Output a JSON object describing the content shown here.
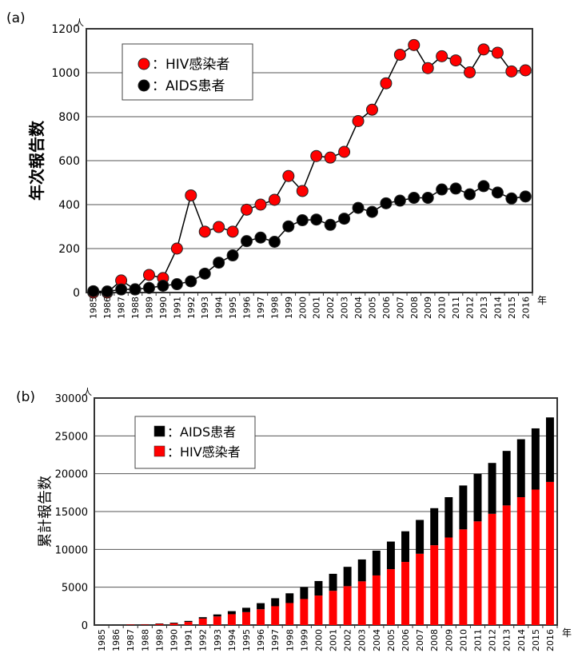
{
  "chart_data": [
    {
      "type": "line",
      "panel_label": "(a)",
      "ylabel": "年次報告数",
      "y_unit": "人",
      "x_unit": "年",
      "ylim": [
        0,
        1200
      ],
      "yticks": [
        0,
        200,
        400,
        600,
        800,
        1000,
        1200
      ],
      "grid": true,
      "legend_placement": "top-left",
      "x": [
        1985,
        1986,
        1987,
        1988,
        1989,
        1990,
        1991,
        1992,
        1993,
        1994,
        1995,
        1996,
        1997,
        1998,
        1999,
        2000,
        2001,
        2002,
        2003,
        2004,
        2005,
        2006,
        2007,
        2008,
        2009,
        2010,
        2011,
        2012,
        2013,
        2014,
        2015,
        2016
      ],
      "series": [
        {
          "name": "：HIV感染者",
          "color": "#ff0000",
          "values": [
            0,
            0,
            55,
            14,
            80,
            66,
            200,
            442,
            277,
            298,
            277,
            377,
            400,
            422,
            530,
            462,
            621,
            614,
            640,
            780,
            832,
            952,
            1082,
            1126,
            1021,
            1075,
            1056,
            1002,
            1106,
            1091,
            1006,
            1011
          ]
        },
        {
          "name": "：AIDS患者",
          "color": "#000000",
          "values": [
            6,
            5,
            14,
            15,
            21,
            31,
            38,
            51,
            86,
            136,
            169,
            234,
            250,
            231,
            301,
            329,
            332,
            308,
            336,
            385,
            367,
            406,
            418,
            431,
            431,
            469,
            473,
            447,
            484,
            455,
            428,
            437
          ]
        }
      ]
    },
    {
      "type": "bar",
      "stacked": true,
      "panel_label": "(b)",
      "ylabel": "累計報告数",
      "y_unit": "人",
      "x_unit": "年",
      "ylim": [
        0,
        30000
      ],
      "yticks": [
        0,
        5000,
        10000,
        15000,
        20000,
        25000,
        30000
      ],
      "grid": true,
      "legend_placement": "top-left",
      "categories": [
        1985,
        1986,
        1987,
        1988,
        1989,
        1990,
        1991,
        1992,
        1993,
        1994,
        1995,
        1996,
        1997,
        1998,
        1999,
        2000,
        2001,
        2002,
        2003,
        2004,
        2005,
        2006,
        2007,
        2008,
        2009,
        2010,
        2011,
        2012,
        2013,
        2014,
        2015,
        2016
      ],
      "legend_order": [
        "：AIDS患者",
        "：HIV感染者"
      ],
      "series": [
        {
          "name": "：HIV感染者",
          "color": "#ff0000",
          "values": [
            0,
            0,
            55,
            69,
            149,
            215,
            415,
            857,
            1134,
            1432,
            1709,
            2086,
            2486,
            2908,
            3438,
            3900,
            4521,
            5135,
            5775,
            6555,
            7387,
            8339,
            9421,
            10547,
            11568,
            12643,
            13699,
            14701,
            15807,
            16898,
            17904,
            18915
          ]
        },
        {
          "name": "：AIDS患者",
          "color": "#000000",
          "values": [
            6,
            11,
            25,
            40,
            61,
            92,
            130,
            181,
            267,
            403,
            572,
            806,
            1056,
            1287,
            1588,
            1917,
            2249,
            2557,
            2893,
            3278,
            3645,
            4051,
            4469,
            4900,
            5331,
            5800,
            6273,
            6720,
            7204,
            7659,
            8087,
            8524
          ]
        }
      ]
    }
  ]
}
